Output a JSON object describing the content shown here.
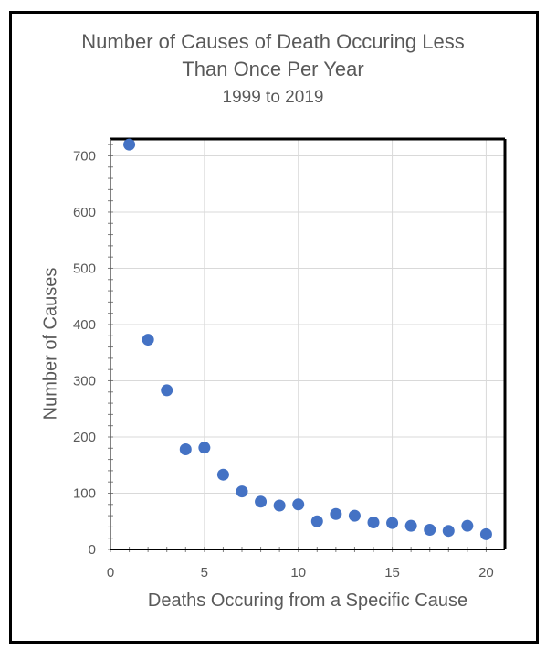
{
  "chart_data": {
    "type": "scatter",
    "title": "Number of Causes of Death Occuring Less",
    "title_line2": "Than Once Per Year",
    "subtitle": "1999 to 2019",
    "xlabel": "Deaths Occuring from a Specific Cause",
    "ylabel": "Number of Causes",
    "xlim": [
      0,
      21
    ],
    "ylim": [
      0,
      730
    ],
    "xticks": [
      0,
      5,
      10,
      15,
      20
    ],
    "yticks": [
      0,
      100,
      200,
      300,
      400,
      500,
      600,
      700
    ],
    "grid": true,
    "marker_color": "#4472C4",
    "x": [
      1,
      2,
      3,
      4,
      5,
      6,
      7,
      8,
      9,
      10,
      11,
      12,
      13,
      14,
      15,
      16,
      17,
      18,
      19,
      20
    ],
    "y": [
      720,
      373,
      283,
      178,
      181,
      133,
      103,
      85,
      78,
      80,
      50,
      63,
      60,
      48,
      47,
      42,
      35,
      33,
      42,
      27
    ]
  }
}
